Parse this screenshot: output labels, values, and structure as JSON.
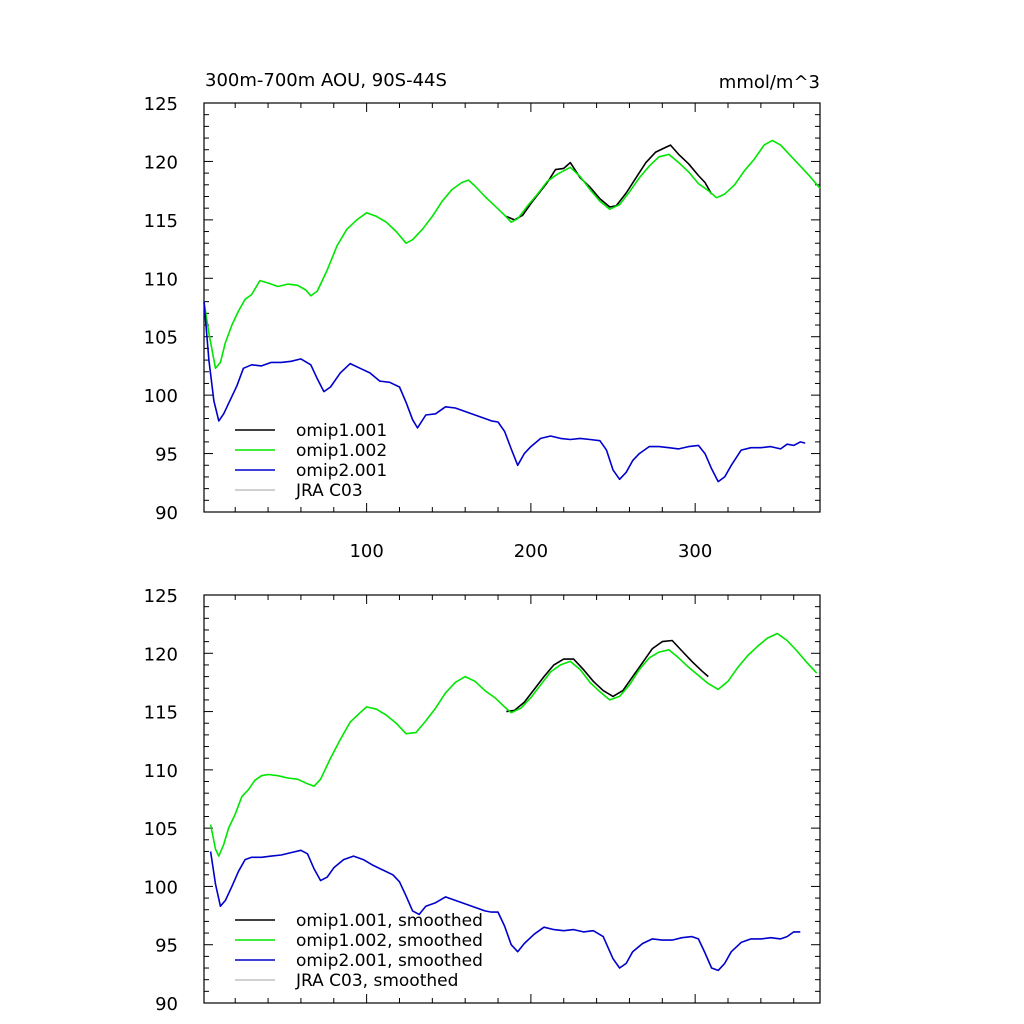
{
  "figure": {
    "title_left": "300m-700m AOU, 90S-44S",
    "title_right": "mmol/m^3"
  },
  "chart_data": [
    {
      "type": "line",
      "title": "300m-700m AOU, 90S-44S",
      "units": "mmol/m^3",
      "xlim": [
        1,
        376
      ],
      "ylim": [
        90,
        125
      ],
      "xticks": [
        100,
        200,
        300
      ],
      "yticks": [
        90,
        95,
        100,
        105,
        110,
        115,
        120,
        125
      ],
      "xtick_labels_shown": true,
      "legend_position": "lower-left",
      "colors": {
        "omip1.001": "#000000",
        "omip1.002": "#00e600",
        "omip2.001": "#0000cc",
        "JRA C03": "#c0c0c0"
      },
      "legend": [
        "omip1.001",
        "omip1.002",
        "omip2.001",
        "JRA C03"
      ],
      "series": [
        {
          "name": "omip1.001",
          "x": [
            185,
            190,
            195,
            200,
            205,
            210,
            215,
            220,
            224,
            230,
            236,
            242,
            248,
            252,
            258,
            264,
            270,
            276,
            282,
            285,
            290,
            296,
            302,
            306,
            310
          ],
          "y": [
            115.3,
            115.0,
            115.4,
            116.4,
            117.3,
            118.2,
            119.3,
            119.4,
            119.9,
            118.6,
            117.8,
            116.8,
            116.1,
            116.2,
            117.3,
            118.6,
            119.9,
            120.8,
            121.2,
            121.4,
            120.6,
            119.8,
            118.8,
            118.2,
            117.2
          ]
        },
        {
          "name": "omip1.002",
          "x": [
            1,
            4,
            8,
            11,
            14,
            18,
            22,
            26,
            30,
            35,
            40,
            46,
            52,
            58,
            63,
            66,
            70,
            76,
            82,
            88,
            94,
            100,
            106,
            112,
            118,
            124,
            128,
            134,
            140,
            146,
            152,
            158,
            162,
            166,
            172,
            178,
            184,
            188,
            192,
            198,
            204,
            210,
            216,
            224,
            230,
            236,
            242,
            248,
            254,
            260,
            266,
            272,
            278,
            284,
            290,
            296,
            302,
            308,
            313,
            318,
            324,
            330,
            336,
            342,
            347,
            352,
            358,
            364,
            370,
            376
          ],
          "y": [
            108.0,
            105.3,
            102.3,
            102.8,
            104.5,
            106.0,
            107.2,
            108.2,
            108.6,
            109.8,
            109.6,
            109.3,
            109.5,
            109.4,
            109.0,
            108.5,
            108.9,
            110.7,
            112.8,
            114.2,
            115.0,
            115.6,
            115.3,
            114.8,
            114.0,
            113.0,
            113.3,
            114.2,
            115.3,
            116.6,
            117.6,
            118.2,
            118.4,
            117.9,
            117.0,
            116.2,
            115.4,
            114.8,
            115.1,
            116.2,
            117.2,
            118.3,
            118.9,
            119.5,
            118.7,
            117.6,
            116.6,
            115.9,
            116.3,
            117.4,
            118.6,
            119.6,
            120.4,
            120.6,
            119.9,
            119.1,
            118.1,
            117.5,
            116.9,
            117.2,
            118.0,
            119.2,
            120.2,
            121.4,
            121.8,
            121.4,
            120.5,
            119.6,
            118.7,
            117.7
          ]
        },
        {
          "name": "omip2.001",
          "x": [
            1,
            4,
            7,
            10,
            13,
            17,
            21,
            25,
            30,
            36,
            42,
            48,
            54,
            60,
            66,
            70,
            74,
            78,
            84,
            90,
            96,
            102,
            108,
            114,
            120,
            124,
            128,
            131,
            136,
            142,
            148,
            154,
            160,
            166,
            172,
            176,
            180,
            184,
            188,
            192,
            196,
            200,
            206,
            212,
            218,
            224,
            230,
            236,
            242,
            246,
            250,
            254,
            258,
            262,
            266,
            272,
            278,
            284,
            290,
            296,
            302,
            306,
            310,
            314,
            318,
            322,
            328,
            334,
            340,
            346,
            352,
            356,
            360,
            364,
            367
          ],
          "y": [
            108.0,
            103.0,
            99.5,
            97.8,
            98.4,
            99.6,
            100.8,
            102.3,
            102.6,
            102.5,
            102.8,
            102.8,
            102.9,
            103.1,
            102.6,
            101.4,
            100.3,
            100.7,
            101.9,
            102.7,
            102.3,
            101.9,
            101.2,
            101.1,
            100.7,
            99.4,
            97.9,
            97.2,
            98.3,
            98.4,
            99.0,
            98.9,
            98.6,
            98.3,
            98.0,
            97.8,
            97.7,
            96.9,
            95.4,
            94.0,
            95.0,
            95.6,
            96.3,
            96.5,
            96.3,
            96.2,
            96.3,
            96.2,
            96.1,
            95.3,
            93.6,
            92.8,
            93.4,
            94.4,
            95.0,
            95.6,
            95.6,
            95.5,
            95.4,
            95.6,
            95.7,
            95.0,
            93.7,
            92.6,
            93.0,
            94.0,
            95.3,
            95.5,
            95.5,
            95.6,
            95.4,
            95.8,
            95.7,
            96.0,
            95.9
          ]
        }
      ]
    },
    {
      "type": "line",
      "xlim": [
        1,
        376
      ],
      "ylim": [
        90,
        125
      ],
      "xticks": [
        100,
        200,
        300
      ],
      "yticks": [
        90,
        95,
        100,
        105,
        110,
        115,
        120,
        125
      ],
      "xtick_labels_shown": false,
      "legend_position": "lower-left",
      "legend": [
        "omip1.001, smoothed",
        "omip1.002, smoothed",
        "omip2.001, smoothed",
        "JRA C03, smoothed"
      ],
      "series": [
        {
          "name": "omip1.001, smoothed",
          "x": [
            185,
            190,
            196,
            202,
            208,
            214,
            220,
            226,
            232,
            238,
            244,
            250,
            256,
            262,
            268,
            274,
            280,
            286,
            292,
            298,
            304,
            308
          ],
          "y": [
            115.0,
            115.1,
            115.8,
            116.9,
            118.0,
            119.0,
            119.5,
            119.5,
            118.6,
            117.6,
            116.8,
            116.3,
            116.8,
            118.0,
            119.2,
            120.4,
            121.0,
            121.1,
            120.2,
            119.3,
            118.5,
            118.0
          ]
        },
        {
          "name": "omip1.002, smoothed",
          "x": [
            5,
            8,
            10,
            13,
            16,
            20,
            24,
            28,
            32,
            36,
            40,
            46,
            52,
            58,
            64,
            68,
            72,
            78,
            84,
            90,
            96,
            100,
            106,
            112,
            118,
            124,
            130,
            136,
            142,
            148,
            154,
            160,
            166,
            172,
            178,
            184,
            188,
            194,
            200,
            206,
            212,
            218,
            224,
            230,
            236,
            242,
            248,
            254,
            260,
            266,
            272,
            278,
            284,
            290,
            296,
            302,
            308,
            314,
            320,
            326,
            332,
            338,
            344,
            350,
            356,
            362,
            368,
            374
          ],
          "y": [
            105.3,
            103.2,
            102.6,
            103.6,
            105.0,
            106.2,
            107.7,
            108.3,
            109.1,
            109.5,
            109.6,
            109.5,
            109.3,
            109.2,
            108.8,
            108.6,
            109.2,
            111.0,
            112.6,
            114.1,
            114.9,
            115.4,
            115.2,
            114.7,
            114.0,
            113.1,
            113.2,
            114.2,
            115.3,
            116.6,
            117.5,
            118.0,
            117.6,
            116.8,
            116.2,
            115.4,
            114.9,
            115.3,
            116.2,
            117.3,
            118.4,
            119.0,
            119.3,
            118.6,
            117.5,
            116.7,
            116.0,
            116.3,
            117.3,
            118.6,
            119.6,
            120.1,
            120.3,
            119.6,
            118.8,
            118.1,
            117.4,
            116.9,
            117.6,
            118.8,
            119.8,
            120.6,
            121.3,
            121.7,
            121.1,
            120.2,
            119.2,
            118.3
          ]
        },
        {
          "name": "omip2.001, smoothed",
          "x": [
            5,
            8,
            11,
            14,
            18,
            22,
            26,
            30,
            36,
            42,
            48,
            54,
            60,
            64,
            68,
            72,
            76,
            80,
            86,
            92,
            98,
            104,
            110,
            116,
            120,
            124,
            128,
            132,
            136,
            142,
            148,
            154,
            160,
            166,
            172,
            176,
            180,
            184,
            188,
            192,
            196,
            202,
            208,
            214,
            220,
            226,
            232,
            238,
            244,
            250,
            254,
            258,
            262,
            268,
            274,
            280,
            286,
            292,
            298,
            302,
            306,
            310,
            314,
            318,
            322,
            328,
            334,
            340,
            346,
            352,
            356,
            360,
            364
          ],
          "y": [
            103.0,
            100.2,
            98.3,
            98.8,
            100.0,
            101.3,
            102.3,
            102.5,
            102.5,
            102.6,
            102.7,
            102.9,
            103.1,
            102.8,
            101.5,
            100.5,
            100.8,
            101.6,
            102.3,
            102.6,
            102.3,
            101.8,
            101.4,
            101.0,
            100.4,
            99.2,
            97.9,
            97.6,
            98.3,
            98.6,
            99.1,
            98.8,
            98.5,
            98.2,
            97.9,
            97.8,
            97.8,
            96.6,
            95.0,
            94.4,
            95.1,
            95.9,
            96.5,
            96.3,
            96.2,
            96.3,
            96.1,
            96.2,
            95.7,
            93.8,
            93.0,
            93.4,
            94.4,
            95.1,
            95.5,
            95.4,
            95.4,
            95.6,
            95.7,
            95.5,
            94.3,
            93.0,
            92.8,
            93.4,
            94.4,
            95.2,
            95.5,
            95.5,
            95.6,
            95.5,
            95.7,
            96.1,
            96.1
          ]
        }
      ]
    }
  ]
}
